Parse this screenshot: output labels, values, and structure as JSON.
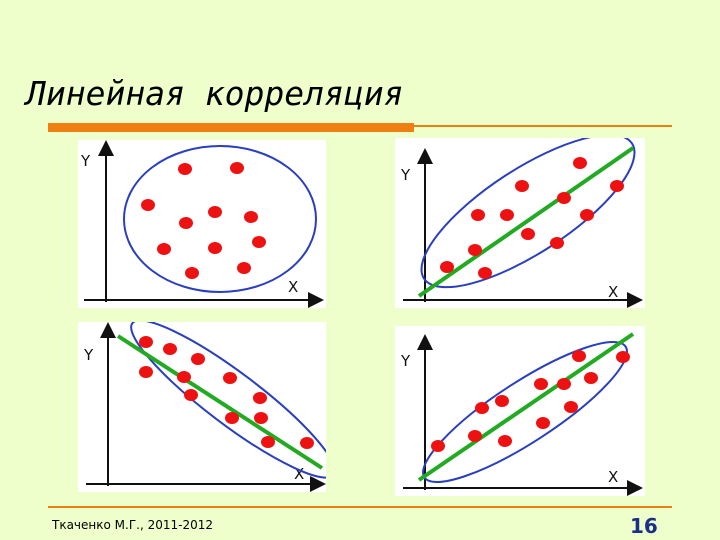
{
  "slide": {
    "title": "Линейная корреляция",
    "footer": "Ткаченко М.Г., 2011-2012",
    "page_number": "16"
  },
  "colors": {
    "background": "#eeffcc",
    "accent": "#f07f12",
    "point": "#ee1111",
    "ellipse": "#2a3fbf",
    "trend_line": "#22aa22",
    "page_number": "#1a2f8a"
  },
  "panels": [
    {
      "name": "no-correlation",
      "x_label": "X",
      "y_label": "Y",
      "has_trend_line": false
    },
    {
      "name": "positive-weak",
      "x_label": "X",
      "y_label": "Y",
      "has_trend_line": true
    },
    {
      "name": "negative-strong",
      "x_label": "X",
      "y_label": "Y",
      "has_trend_line": true
    },
    {
      "name": "positive-strong",
      "x_label": "X",
      "y_label": "Y",
      "has_trend_line": true
    }
  ]
}
